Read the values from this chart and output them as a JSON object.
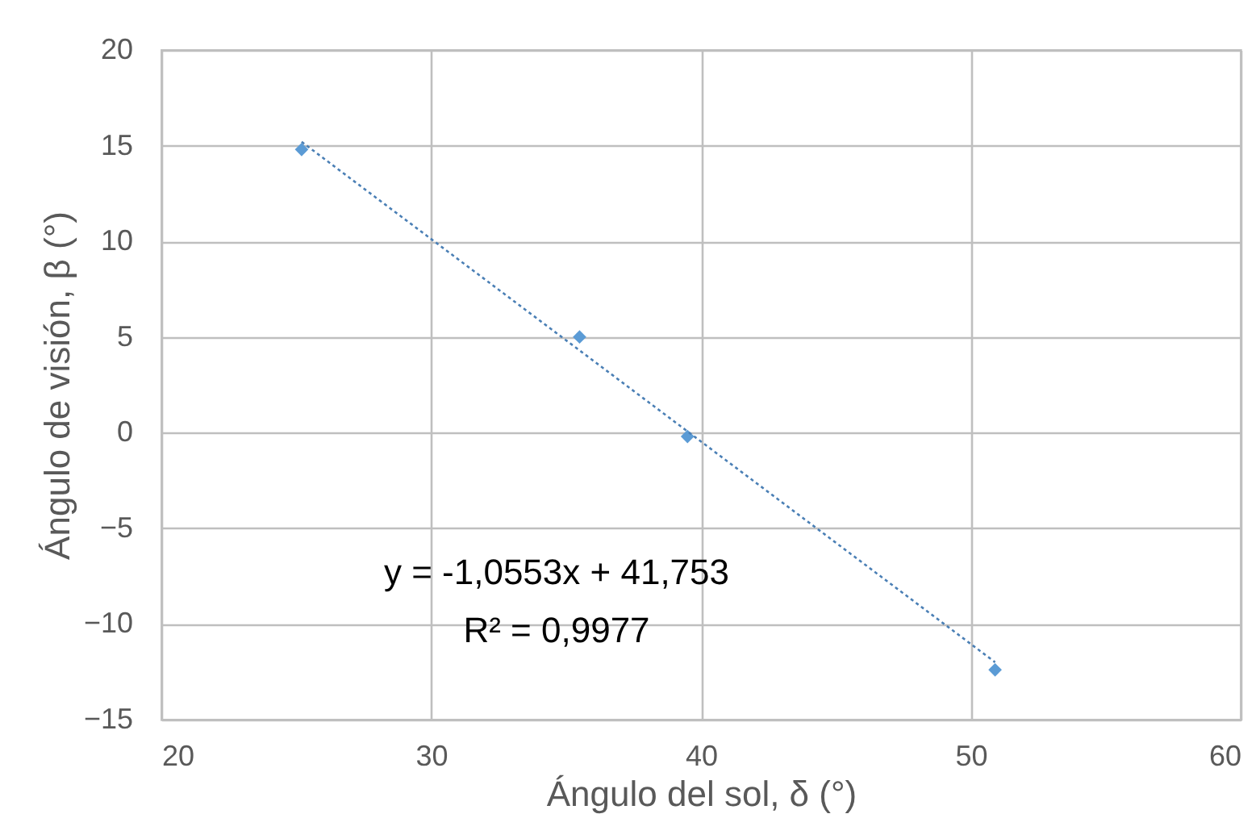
{
  "chart_data": {
    "type": "scatter",
    "xlabel": "Ángulo del sol, δ (°)",
    "ylabel": "Ángulo de visión, β (°)",
    "annotations": [
      "y = -1,0553x + 41,753",
      "R² = 0,9977"
    ],
    "xlim": [
      20,
      60
    ],
    "xticks": [
      20,
      30,
      40,
      50,
      60
    ],
    "ylim": [
      -15,
      20
    ],
    "yticks": [
      -15,
      -10,
      -5,
      0,
      5,
      10,
      15,
      20
    ],
    "grid": true,
    "series": [
      {
        "color": "#5b9bd5",
        "marker": "diamond",
        "x": [
          25.2,
          35.5,
          39.5,
          50.9
        ],
        "values": [
          14.8,
          5.0,
          -0.2,
          -12.4
        ]
      },
      {
        "type": "line",
        "color": "#4a7fb5",
        "line_style": "dotted",
        "marker": "none",
        "x": [
          25.2,
          50.9
        ],
        "values": [
          15.2,
          -12.0
        ]
      }
    ]
  }
}
